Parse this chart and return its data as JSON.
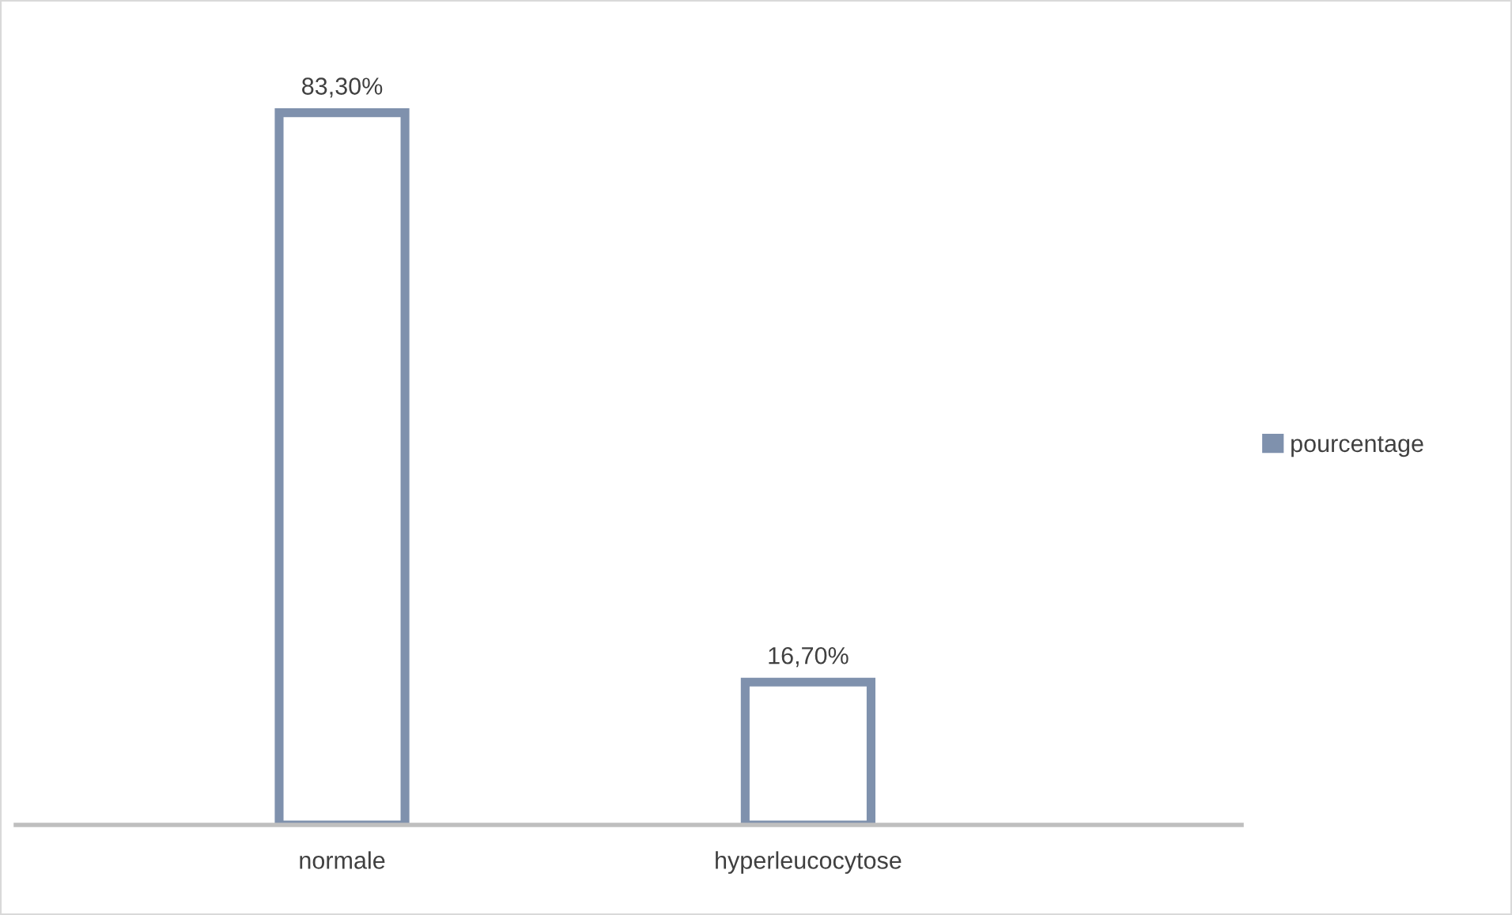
{
  "chart_data": {
    "type": "bar",
    "categories": [
      "normale",
      "hyperleucocytose"
    ],
    "series": [
      {
        "name": "pourcentage",
        "color": "#7f91ad",
        "values": [
          83.3,
          16.7
        ],
        "value_labels": [
          "83,30%",
          "16,70%"
        ]
      }
    ],
    "legend": "right"
  }
}
